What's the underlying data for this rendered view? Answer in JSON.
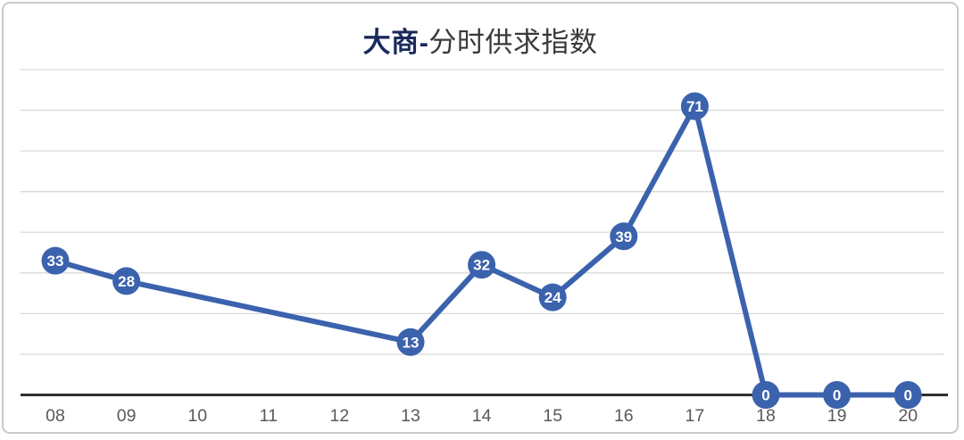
{
  "title": {
    "prefix": "大商-",
    "rest": "分时供求指数",
    "full": "大商-分时供求指数"
  },
  "colors": {
    "line": "#3B62AD",
    "marker_fill": "#3B62AD",
    "marker_label": "#FFFFFF",
    "title_prefix": "#1A2A5C",
    "title_rest": "#3A3A3A",
    "gridline": "#D9D9D9",
    "axis_line": "#303030",
    "tick_label": "#595959",
    "card_border": "#C9C9C9",
    "background": "#FFFFFF"
  },
  "chart_data": {
    "type": "line",
    "title": "大商-分时供求指数",
    "xlabel": "",
    "ylabel": "",
    "categories": [
      "08",
      "09",
      "10",
      "11",
      "12",
      "13",
      "14",
      "15",
      "16",
      "17",
      "18",
      "19",
      "20"
    ],
    "series": [
      {
        "name": "分时供求指数",
        "values": [
          33,
          28,
          null,
          null,
          null,
          13,
          32,
          24,
          39,
          71,
          0,
          0,
          0
        ]
      }
    ],
    "labeled_points": [
      {
        "x": "08",
        "value": 33
      },
      {
        "x": "09",
        "value": 28
      },
      {
        "x": "13",
        "value": 13
      },
      {
        "x": "14",
        "value": 32
      },
      {
        "x": "15",
        "value": 24
      },
      {
        "x": "16",
        "value": 39
      },
      {
        "x": "17",
        "value": 71
      },
      {
        "x": "18",
        "value": 0
      },
      {
        "x": "19",
        "value": 0
      },
      {
        "x": "20",
        "value": 0
      }
    ],
    "ylim": [
      0,
      80
    ],
    "y_grid_interval": 10,
    "y_axis_labels_visible": false,
    "grid": "horizontal",
    "legend_position": "none",
    "marker_style": "filled-circle-with-value"
  }
}
